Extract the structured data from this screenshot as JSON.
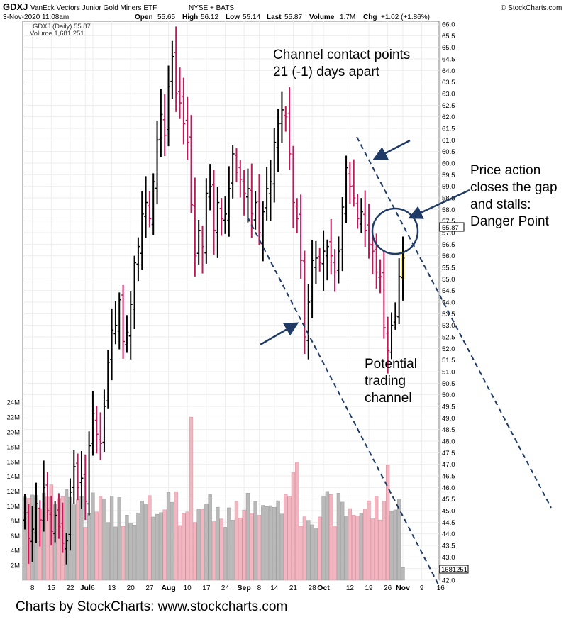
{
  "header": {
    "symbol": "GDXJ",
    "description": "VanEck Vectors Junior Gold Miners ETF",
    "exchange": "NYSE + BATS",
    "source": "© StockCharts.com",
    "timestamp": "3-Nov-2020 11:08am",
    "open_label": "Open",
    "open_value": "55.65",
    "high_label": "High",
    "high_value": "56.12",
    "low_label": "Low",
    "low_value": "55.14",
    "last_label": "Last",
    "last_value": "55.87",
    "volume_label": "Volume",
    "volume_value": "1.7M",
    "chg_label": "Chg",
    "chg_value": "+1.02 (+1.86%)",
    "legend_price": "GDXJ (Daily) 55.87",
    "legend_volume": "Volume 1,681,251",
    "last_price_tag": "55.87",
    "last_volume_tag": "1681251"
  },
  "annotations": {
    "contact_line1": "Channel contact points",
    "contact_line2": "21 (-1) days apart",
    "price_line1": "Price action",
    "price_line2": "closes the gap",
    "price_line3": "and stalls:",
    "price_line4": "Danger Point",
    "channel_line1": "Potential",
    "channel_line2": "trading",
    "channel_line3": "channel"
  },
  "footer": "Charts by StockCharts:  www.stockcharts.com",
  "colors": {
    "up": "#000000",
    "down": "#c2185b",
    "vol_up": "#b9b9b9",
    "vol_down": "#f2b6c1",
    "annotation": "#1f3b66",
    "highlight": "#ffee66"
  },
  "chart_data": {
    "type": "ohlc",
    "y_range": [
      42.0,
      66.0
    ],
    "y_ticks": [
      "42.0",
      "42.5",
      "43.0",
      "43.5",
      "44.0",
      "44.5",
      "45.0",
      "45.5",
      "46.0",
      "46.5",
      "47.0",
      "47.5",
      "48.0",
      "48.5",
      "49.0",
      "49.5",
      "50.0",
      "50.5",
      "51.0",
      "51.5",
      "52.0",
      "52.5",
      "53.0",
      "53.5",
      "54.0",
      "54.5",
      "55.0",
      "55.5",
      "56.0",
      "56.5",
      "57.0",
      "57.5",
      "58.0",
      "58.5",
      "59.0",
      "59.5",
      "60.0",
      "60.5",
      "61.0",
      "61.5",
      "62.0",
      "62.5",
      "63.0",
      "63.5",
      "64.0",
      "64.5",
      "65.0",
      "65.5",
      "66.0"
    ],
    "volume_ticks": [
      "2M",
      "4M",
      "6M",
      "8M",
      "10M",
      "12M",
      "14M",
      "16M",
      "18M",
      "20M",
      "22M",
      "24M"
    ],
    "volume_range": [
      0,
      26
    ],
    "x_ticks": [
      {
        "label": "8",
        "i": 2
      },
      {
        "label": "15",
        "i": 7
      },
      {
        "label": "22",
        "i": 12
      },
      {
        "label": "Jul",
        "i": 16,
        "bold": true
      },
      {
        "label": "6",
        "i": 18
      },
      {
        "label": "13",
        "i": 23
      },
      {
        "label": "20",
        "i": 28
      },
      {
        "label": "27",
        "i": 33
      },
      {
        "label": "Aug",
        "i": 38,
        "bold": true
      },
      {
        "label": "10",
        "i": 43
      },
      {
        "label": "17",
        "i": 48
      },
      {
        "label": "24",
        "i": 53
      },
      {
        "label": "Sep",
        "i": 58,
        "bold": true
      },
      {
        "label": "8",
        "i": 62
      },
      {
        "label": "14",
        "i": 66
      },
      {
        "label": "21",
        "i": 71
      },
      {
        "label": "28",
        "i": 76
      },
      {
        "label": "Oct",
        "i": 79,
        "bold": true
      },
      {
        "label": "12",
        "i": 86
      },
      {
        "label": "19",
        "i": 91
      },
      {
        "label": "26",
        "i": 96
      },
      {
        "label": "Nov",
        "i": 100,
        "bold": true
      },
      {
        "label": "9",
        "i": 105
      },
      {
        "label": "16",
        "i": 110
      }
    ],
    "close": [
      44.9,
      43.8,
      44.2,
      45.3,
      44.6,
      46.0,
      45.0,
      44.1,
      44.8,
      44.3,
      43.6,
      43.7,
      45.8,
      46.9,
      46.0,
      46.4,
      45.4,
      47.8,
      49.2,
      48.3,
      47.9,
      49.5,
      51.4,
      52.8,
      53.0,
      54.1,
      52.3,
      52.7,
      53.9,
      55.7,
      56.4,
      57.8,
      58.3,
      57.6,
      59.2,
      61.0,
      62.1,
      61.2,
      63.3,
      64.6,
      63.0,
      62.6,
      61.7,
      60.9,
      58.2,
      56.0,
      57.1,
      56.4,
      58.7,
      59.0,
      57.1,
      58.3,
      57.6,
      57.8,
      58.9,
      60.4,
      59.6,
      59.3,
      58.7,
      58.9,
      57.8,
      58.3,
      57.0,
      57.9,
      58.9,
      59.2,
      60.9,
      61.7,
      62.3,
      62.0,
      60.4,
      58.3,
      57.6,
      55.8,
      52.5,
      54.0,
      55.8,
      55.9,
      55.7,
      56.2,
      56.4,
      56.0,
      55.3,
      56.2,
      58.1,
      59.8,
      59.0,
      58.5,
      57.6,
      57.9,
      57.1,
      56.5,
      56.2,
      55.3,
      55.1,
      52.9,
      51.9,
      53.0,
      53.4,
      55.1,
      55.9
    ]
  }
}
